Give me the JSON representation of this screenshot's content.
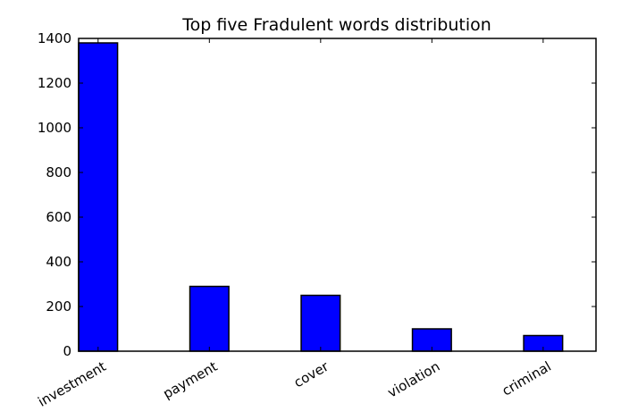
{
  "chart_data": {
    "type": "bar",
    "title": "Top five Fradulent words distribution",
    "xlabel": "",
    "ylabel": "",
    "categories": [
      "investment",
      "payment",
      "cover",
      "violation",
      "criminal"
    ],
    "values": [
      1380,
      290,
      250,
      100,
      70
    ],
    "ylim": [
      0,
      1400
    ],
    "yticks": [
      0,
      200,
      400,
      600,
      800,
      1000,
      1200,
      1400
    ],
    "bar_color": "#0000ff",
    "grid": false,
    "legend": "none"
  }
}
